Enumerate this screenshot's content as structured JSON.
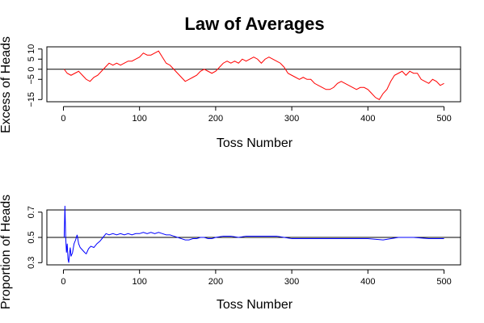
{
  "figure": {
    "title": "Law of Averages"
  },
  "chart_data": [
    {
      "type": "line",
      "title": "Law of Averages",
      "xlabel": "Toss Number",
      "ylabel": "Excess of Heads",
      "xlim": [
        0,
        500
      ],
      "ylim": [
        -15,
        10
      ],
      "xticks": [
        0,
        100,
        200,
        300,
        400,
        500
      ],
      "yticks": [
        -15,
        -5,
        0,
        5,
        10
      ],
      "ytick_labels": [
        "−15",
        "−5",
        "0",
        "5",
        "10"
      ],
      "reference_line": 0,
      "grid": false,
      "series": [
        {
          "color": "#ff0000",
          "points": [
            [
              1,
              0
            ],
            [
              5,
              -2
            ],
            [
              10,
              -3
            ],
            [
              15,
              -2
            ],
            [
              20,
              -1
            ],
            [
              25,
              -3
            ],
            [
              30,
              -5
            ],
            [
              35,
              -6
            ],
            [
              40,
              -4
            ],
            [
              45,
              -3
            ],
            [
              50,
              -1
            ],
            [
              55,
              1
            ],
            [
              60,
              3
            ],
            [
              65,
              2
            ],
            [
              70,
              3
            ],
            [
              75,
              2
            ],
            [
              80,
              3
            ],
            [
              85,
              4
            ],
            [
              90,
              4
            ],
            [
              95,
              5
            ],
            [
              100,
              6
            ],
            [
              105,
              8
            ],
            [
              110,
              7
            ],
            [
              115,
              7
            ],
            [
              120,
              8
            ],
            [
              125,
              9
            ],
            [
              130,
              6
            ],
            [
              135,
              3
            ],
            [
              140,
              2
            ],
            [
              145,
              0
            ],
            [
              150,
              -2
            ],
            [
              155,
              -4
            ],
            [
              160,
              -6
            ],
            [
              165,
              -5
            ],
            [
              170,
              -4
            ],
            [
              175,
              -3
            ],
            [
              180,
              -1
            ],
            [
              185,
              0
            ],
            [
              190,
              -1
            ],
            [
              195,
              -2
            ],
            [
              200,
              -1
            ],
            [
              205,
              1
            ],
            [
              210,
              3
            ],
            [
              215,
              4
            ],
            [
              220,
              3
            ],
            [
              225,
              4
            ],
            [
              230,
              3
            ],
            [
              235,
              5
            ],
            [
              240,
              4
            ],
            [
              245,
              5
            ],
            [
              250,
              6
            ],
            [
              255,
              5
            ],
            [
              260,
              3
            ],
            [
              265,
              5
            ],
            [
              270,
              6
            ],
            [
              275,
              5
            ],
            [
              280,
              4
            ],
            [
              285,
              3
            ],
            [
              290,
              1
            ],
            [
              295,
              -2
            ],
            [
              300,
              -3
            ],
            [
              305,
              -4
            ],
            [
              310,
              -5
            ],
            [
              315,
              -4
            ],
            [
              320,
              -5
            ],
            [
              325,
              -5
            ],
            [
              330,
              -7
            ],
            [
              335,
              -8
            ],
            [
              340,
              -9
            ],
            [
              345,
              -10
            ],
            [
              350,
              -10
            ],
            [
              355,
              -9
            ],
            [
              360,
              -7
            ],
            [
              365,
              -6
            ],
            [
              370,
              -7
            ],
            [
              375,
              -8
            ],
            [
              380,
              -9
            ],
            [
              385,
              -10
            ],
            [
              390,
              -9
            ],
            [
              395,
              -9
            ],
            [
              400,
              -10
            ],
            [
              405,
              -12
            ],
            [
              410,
              -14
            ],
            [
              415,
              -15
            ],
            [
              420,
              -12
            ],
            [
              425,
              -10
            ],
            [
              430,
              -6
            ],
            [
              435,
              -3
            ],
            [
              440,
              -2
            ],
            [
              445,
              -1
            ],
            [
              450,
              -3
            ],
            [
              455,
              -1
            ],
            [
              460,
              -2
            ],
            [
              465,
              -2
            ],
            [
              470,
              -5
            ],
            [
              475,
              -6
            ],
            [
              480,
              -7
            ],
            [
              485,
              -5
            ],
            [
              490,
              -6
            ],
            [
              495,
              -8
            ],
            [
              500,
              -7
            ]
          ]
        }
      ]
    },
    {
      "type": "line",
      "xlabel": "Toss Number",
      "ylabel": "Proportion of Heads",
      "xlim": [
        0,
        500
      ],
      "ylim": [
        0.3,
        0.7
      ],
      "xticks": [
        0,
        100,
        200,
        300,
        400,
        500
      ],
      "yticks": [
        0.3,
        0.5,
        0.7
      ],
      "ytick_labels": [
        "0.3",
        "0.5",
        "0.7"
      ],
      "reference_line": 0.5,
      "grid": false,
      "series": [
        {
          "color": "#0000ff",
          "points": [
            [
              1,
              0.5
            ],
            [
              2,
              0.75
            ],
            [
              3,
              0.5
            ],
            [
              4,
              0.38
            ],
            [
              5,
              0.45
            ],
            [
              6,
              0.33
            ],
            [
              7,
              0.3
            ],
            [
              8,
              0.37
            ],
            [
              9,
              0.42
            ],
            [
              10,
              0.35
            ],
            [
              12,
              0.38
            ],
            [
              14,
              0.45
            ],
            [
              16,
              0.48
            ],
            [
              18,
              0.52
            ],
            [
              20,
              0.45
            ],
            [
              22,
              0.42
            ],
            [
              25,
              0.4
            ],
            [
              28,
              0.38
            ],
            [
              30,
              0.37
            ],
            [
              33,
              0.41
            ],
            [
              36,
              0.43
            ],
            [
              40,
              0.42
            ],
            [
              44,
              0.45
            ],
            [
              48,
              0.47
            ],
            [
              52,
              0.5
            ],
            [
              56,
              0.53
            ],
            [
              60,
              0.52
            ],
            [
              65,
              0.53
            ],
            [
              70,
              0.52
            ],
            [
              75,
              0.53
            ],
            [
              80,
              0.52
            ],
            [
              85,
              0.53
            ],
            [
              90,
              0.52
            ],
            [
              95,
              0.53
            ],
            [
              100,
              0.53
            ],
            [
              105,
              0.54
            ],
            [
              110,
              0.53
            ],
            [
              115,
              0.54
            ],
            [
              120,
              0.53
            ],
            [
              125,
              0.54
            ],
            [
              130,
              0.53
            ],
            [
              135,
              0.52
            ],
            [
              140,
              0.52
            ],
            [
              145,
              0.51
            ],
            [
              150,
              0.5
            ],
            [
              155,
              0.49
            ],
            [
              160,
              0.48
            ],
            [
              165,
              0.48
            ],
            [
              170,
              0.49
            ],
            [
              175,
              0.49
            ],
            [
              180,
              0.5
            ],
            [
              185,
              0.5
            ],
            [
              190,
              0.49
            ],
            [
              195,
              0.49
            ],
            [
              200,
              0.5
            ],
            [
              210,
              0.51
            ],
            [
              220,
              0.51
            ],
            [
              230,
              0.5
            ],
            [
              240,
              0.51
            ],
            [
              250,
              0.51
            ],
            [
              260,
              0.51
            ],
            [
              270,
              0.51
            ],
            [
              280,
              0.51
            ],
            [
              290,
              0.5
            ],
            [
              300,
              0.49
            ],
            [
              320,
              0.49
            ],
            [
              340,
              0.49
            ],
            [
              360,
              0.49
            ],
            [
              380,
              0.49
            ],
            [
              400,
              0.49
            ],
            [
              420,
              0.48
            ],
            [
              440,
              0.5
            ],
            [
              460,
              0.5
            ],
            [
              480,
              0.49
            ],
            [
              500,
              0.49
            ]
          ]
        }
      ]
    }
  ]
}
